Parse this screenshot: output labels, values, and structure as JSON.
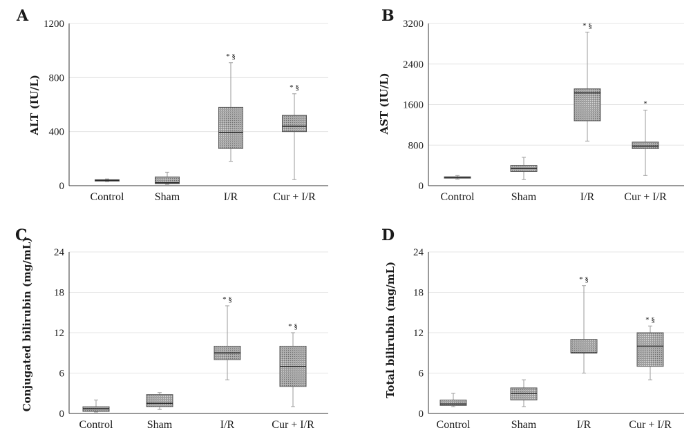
{
  "figure": {
    "colors": {
      "box_fill": "#a9a9a9",
      "box_stroke": "#555555",
      "whisker": "#9a9a9a",
      "grid": "#e4e4e4",
      "axis": "#333333",
      "median": "#2a2a2a"
    }
  },
  "chart_data": [
    {
      "type": "box",
      "panel": "A",
      "title": "",
      "ylabel": "ALT (IU/L)",
      "xlabel": "",
      "categories": [
        "Control",
        "Sham",
        "I/R",
        "Cur + I/R"
      ],
      "ylim": [
        0,
        1200
      ],
      "yticks": [
        0,
        400,
        800,
        1200
      ],
      "grid": true,
      "boxes": [
        {
          "min": 30,
          "q1": 35,
          "median": 40,
          "q3": 44,
          "max": 50
        },
        {
          "min": 10,
          "q1": 15,
          "median": 22,
          "q3": 65,
          "max": 100
        },
        {
          "min": 180,
          "q1": 275,
          "median": 395,
          "q3": 580,
          "max": 910
        },
        {
          "min": 45,
          "q1": 400,
          "median": 440,
          "q3": 520,
          "max": 680
        }
      ],
      "annotations": [
        "",
        "",
        "* §",
        "* §"
      ]
    },
    {
      "type": "box",
      "panel": "B",
      "title": "",
      "ylabel": "AST (IU/L)",
      "xlabel": "",
      "categories": [
        "Control",
        "Sham",
        "I/R",
        "Cur + I/R"
      ],
      "ylim": [
        0,
        3200
      ],
      "yticks": [
        0,
        800,
        1600,
        2400,
        3200
      ],
      "grid": true,
      "boxes": [
        {
          "min": 130,
          "q1": 150,
          "median": 165,
          "q3": 175,
          "max": 200
        },
        {
          "min": 120,
          "q1": 280,
          "median": 340,
          "q3": 400,
          "max": 560
        },
        {
          "min": 880,
          "q1": 1280,
          "median": 1830,
          "q3": 1910,
          "max": 3030
        },
        {
          "min": 200,
          "q1": 730,
          "median": 780,
          "q3": 860,
          "max": 1490
        }
      ],
      "annotations": [
        "",
        "",
        "* §",
        "*"
      ]
    },
    {
      "type": "box",
      "panel": "C",
      "title": "",
      "ylabel": "Conjugated bilirubin (mg/mL)",
      "xlabel": "",
      "categories": [
        "Control",
        "Sham",
        "I/R",
        "Cur + I/R"
      ],
      "ylim": [
        0,
        24
      ],
      "yticks": [
        0,
        6,
        12,
        18,
        24
      ],
      "grid": true,
      "boxes": [
        {
          "min": 0.2,
          "q1": 0.3,
          "median": 0.7,
          "q3": 1.0,
          "max": 2.0
        },
        {
          "min": 0.6,
          "q1": 1.0,
          "median": 1.5,
          "q3": 2.8,
          "max": 3.1
        },
        {
          "min": 5.0,
          "q1": 8.0,
          "median": 9.0,
          "q3": 10.0,
          "max": 16.0
        },
        {
          "min": 1.0,
          "q1": 4.0,
          "median": 7.0,
          "q3": 10.0,
          "max": 12.0
        }
      ],
      "annotations": [
        "",
        "",
        "* §",
        "* §"
      ]
    },
    {
      "type": "box",
      "panel": "D",
      "title": "",
      "ylabel": "Total bilirubin (mg/mL)",
      "xlabel": "",
      "categories": [
        "Control",
        "Sham",
        "I/R",
        "Cur + I/R"
      ],
      "ylim": [
        0,
        24
      ],
      "yticks": [
        0,
        6,
        12,
        18,
        24
      ],
      "grid": true,
      "boxes": [
        {
          "min": 1.0,
          "q1": 1.2,
          "median": 1.4,
          "q3": 2.0,
          "max": 3.0
        },
        {
          "min": 1.0,
          "q1": 2.0,
          "median": 3.0,
          "q3": 3.8,
          "max": 5.0
        },
        {
          "min": 6.0,
          "q1": 9.0,
          "median": 9.0,
          "q3": 11.0,
          "max": 19.0
        },
        {
          "min": 5.0,
          "q1": 7.0,
          "median": 10.0,
          "q3": 12.0,
          "max": 13.0
        }
      ],
      "annotations": [
        "",
        "",
        "* §",
        "* §"
      ]
    }
  ]
}
